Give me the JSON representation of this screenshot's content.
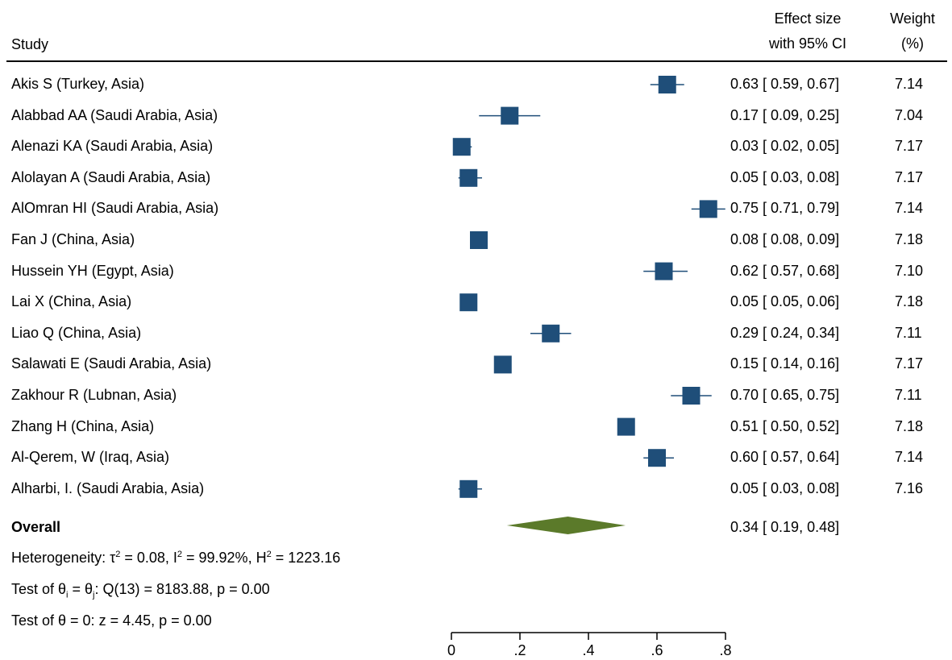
{
  "header": {
    "study": "Study",
    "effect_line1": "Effect size",
    "effect_line2": "with 95% CI",
    "weight_line1": "Weight",
    "weight_line2": "(%)"
  },
  "chart_data": {
    "type": "forest",
    "studies": [
      {
        "label": "Akis S (Turkey, Asia)",
        "es": 0.63,
        "lo": 0.59,
        "hi": 0.67,
        "ci_text": "0.63 [ 0.59,  0.67]",
        "weight": "7.14"
      },
      {
        "label": "Alabbad AA (Saudi Arabia, Asia)",
        "es": 0.17,
        "lo": 0.09,
        "hi": 0.25,
        "ci_text": "0.17 [ 0.09,  0.25]",
        "weight": "7.04"
      },
      {
        "label": "Alenazi KA (Saudi Arabia, Asia)",
        "es": 0.03,
        "lo": 0.02,
        "hi": 0.05,
        "ci_text": "0.03 [ 0.02,  0.05]",
        "weight": "7.17"
      },
      {
        "label": "Alolayan A (Saudi Arabia, Asia)",
        "es": 0.05,
        "lo": 0.03,
        "hi": 0.08,
        "ci_text": "0.05 [ 0.03,  0.08]",
        "weight": "7.17"
      },
      {
        "label": "AlOmran HI (Saudi Arabia, Asia)",
        "es": 0.75,
        "lo": 0.71,
        "hi": 0.79,
        "ci_text": "0.75 [ 0.71,  0.79]",
        "weight": "7.14"
      },
      {
        "label": "Fan J (China, Asia)",
        "es": 0.08,
        "lo": 0.08,
        "hi": 0.09,
        "ci_text": "0.08 [ 0.08,  0.09]",
        "weight": "7.18"
      },
      {
        "label": "Hussein YH (Egypt, Asia)",
        "es": 0.62,
        "lo": 0.57,
        "hi": 0.68,
        "ci_text": "0.62 [ 0.57,  0.68]",
        "weight": "7.10"
      },
      {
        "label": "Lai X (China, Asia)",
        "es": 0.05,
        "lo": 0.05,
        "hi": 0.06,
        "ci_text": "0.05 [ 0.05,  0.06]",
        "weight": "7.18"
      },
      {
        "label": "Liao Q (China, Asia)",
        "es": 0.29,
        "lo": 0.24,
        "hi": 0.34,
        "ci_text": "0.29 [ 0.24,  0.34]",
        "weight": "7.11"
      },
      {
        "label": "Salawati E (Saudi Arabia, Asia)",
        "es": 0.15,
        "lo": 0.14,
        "hi": 0.16,
        "ci_text": "0.15 [ 0.14,  0.16]",
        "weight": "7.17"
      },
      {
        "label": "Zakhour R (Lubnan, Asia)",
        "es": 0.7,
        "lo": 0.65,
        "hi": 0.75,
        "ci_text": "0.70 [ 0.65,  0.75]",
        "weight": "7.11"
      },
      {
        "label": "Zhang H (China, Asia)",
        "es": 0.51,
        "lo": 0.5,
        "hi": 0.52,
        "ci_text": "0.51 [ 0.50,  0.52]",
        "weight": "7.18"
      },
      {
        "label": "Al-Qerem, W (Iraq, Asia)",
        "es": 0.6,
        "lo": 0.57,
        "hi": 0.64,
        "ci_text": "0.60 [ 0.57,  0.64]",
        "weight": "7.14"
      },
      {
        "label": "Alharbi, I. (Saudi Arabia, Asia)",
        "es": 0.05,
        "lo": 0.03,
        "hi": 0.08,
        "ci_text": "0.05 [ 0.03,  0.08]",
        "weight": "7.16"
      }
    ],
    "overall": {
      "label": "Overall",
      "es": 0.34,
      "lo": 0.19,
      "hi": 0.48,
      "ci_text": "0.34 [ 0.19,  0.48]"
    },
    "x_ticks": [
      "0",
      ".2",
      ".4",
      ".6",
      ".8"
    ],
    "x_tick_values": [
      0,
      0.2,
      0.4,
      0.6,
      0.8
    ],
    "xlim": [
      0,
      0.8
    ],
    "colors": {
      "marker": "#1f4e79",
      "diamond": "#5b7a2a"
    }
  },
  "footer": {
    "heterogeneity_prefix": "Heterogeneity: τ",
    "heterogeneity_tau_sup": "2",
    "heterogeneity_mid1": " = 0.08, I",
    "heterogeneity_i_sup": "2",
    "heterogeneity_mid2": " = 99.92%, H",
    "heterogeneity_h_sup": "2",
    "heterogeneity_end": " = 1223.16",
    "test1_prefix": "Test of θ",
    "test1_sub_i": "i",
    "test1_mid": " = θ",
    "test1_sub_j": "j",
    "test1_end": ": Q(13) = 8183.88, p = 0.00",
    "test2": "Test of θ = 0: z = 4.45, p = 0.00"
  }
}
